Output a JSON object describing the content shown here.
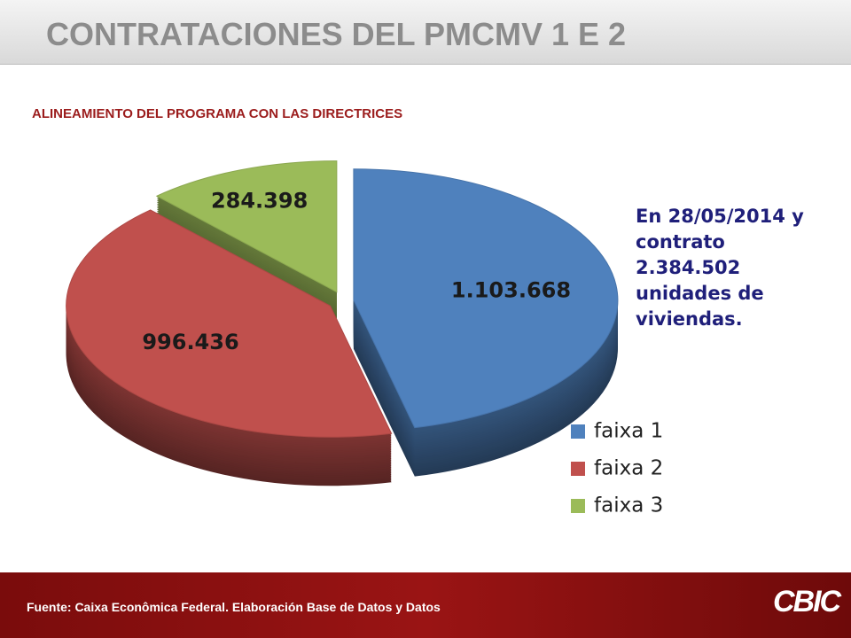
{
  "chart_data": {
    "type": "pie",
    "title": "CONTRATACIONES DEL PMCMV 1 E 2",
    "subtitle": "ALINEAMIENTO DEL PROGRAMA CON LAS DIRECTRICES",
    "categories": [
      "faixa 1",
      "faixa 2",
      "faixa 3"
    ],
    "values": [
      1103668,
      996436,
      284398
    ],
    "value_labels": [
      "1.103.668",
      "996.436",
      "284.398"
    ],
    "colors": [
      "#4f81bd",
      "#c0504d",
      "#9bbb59"
    ],
    "legend": "bottom-right",
    "annotation": "En 28/05/2014 y contrato 2.384.502 unidades de viviendas."
  },
  "footer": {
    "source": "Fuente: Caixa Econômica Federal. Elaboración Base de Datos y Datos",
    "logo": "CBIC"
  }
}
